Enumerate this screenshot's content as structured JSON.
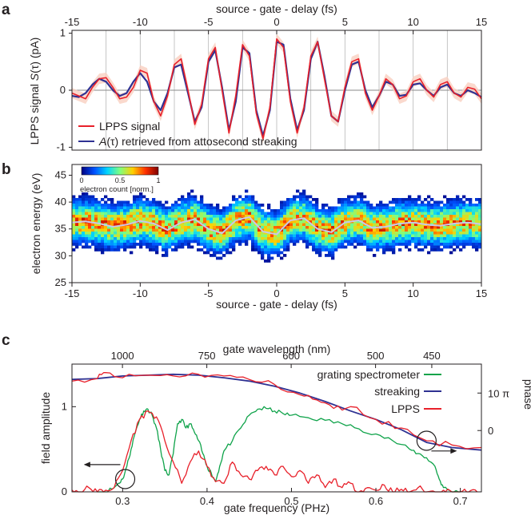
{
  "figure": {
    "panel_a": "a",
    "panel_b": "b",
    "panel_c": "c"
  },
  "chart_data": [
    {
      "panel": "a",
      "type": "line",
      "xlabel": "source - gate - delay (fs)",
      "ylabel_prefix": "LPPS signal ",
      "ylabel_italic": "S",
      "ylabel_suffix": "(τ) (pA)",
      "xlim": [
        -15,
        15
      ],
      "ylim": [
        -1.05,
        1.05
      ],
      "xticks": [
        -15,
        -10,
        -5,
        0,
        5,
        10,
        15
      ],
      "yticks": [
        -1,
        0,
        1
      ],
      "gridlines_x": [
        -12.5,
        -10,
        -7.5,
        -5,
        -2.5,
        0,
        2.5,
        5,
        7.5,
        10,
        12.5
      ],
      "zero_line": true,
      "legend_position": "bottom-left",
      "series": [
        {
          "name": "LPPS signal",
          "color": "#e8202a",
          "band_color": "#f9cfc0",
          "x": [
            -15,
            -14.5,
            -14,
            -13.5,
            -13,
            -12.5,
            -12,
            -11.5,
            -11,
            -10.5,
            -10,
            -9.5,
            -9,
            -8.5,
            -8,
            -7.5,
            -7,
            -6.5,
            -6,
            -5.5,
            -5,
            -4.5,
            -4,
            -3.5,
            -3,
            -2.5,
            -2,
            -1.5,
            -1,
            -0.5,
            0,
            0.5,
            1,
            1.5,
            2,
            2.5,
            3,
            3.5,
            4,
            4.5,
            5,
            5.5,
            6,
            6.5,
            7,
            7.5,
            8,
            8.5,
            9,
            9.5,
            10,
            10.5,
            11,
            11.5,
            12,
            12.5,
            13,
            13.5,
            14,
            14.5,
            15
          ],
          "y": [
            -0.05,
            -0.1,
            -0.15,
            0.05,
            0.2,
            0.22,
            0.05,
            -0.15,
            -0.12,
            0.05,
            0.35,
            0.3,
            -0.2,
            -0.45,
            -0.1,
            0.45,
            0.55,
            0.0,
            -0.6,
            -0.25,
            0.55,
            0.75,
            0.0,
            -0.75,
            -0.1,
            0.8,
            0.6,
            -0.4,
            -0.85,
            -0.3,
            0.9,
            0.75,
            -0.2,
            -0.75,
            -0.3,
            0.6,
            0.85,
            0.2,
            -0.45,
            -0.55,
            0.05,
            0.5,
            0.55,
            -0.05,
            -0.35,
            -0.1,
            0.2,
            0.1,
            -0.15,
            -0.1,
            0.15,
            0.2,
            0.0,
            -0.12,
            0.1,
            0.15,
            -0.05,
            -0.12,
            0.05,
            0.02,
            -0.15
          ]
        },
        {
          "name_prefix": "",
          "name_italic": "A",
          "name_suffix": "(τ) retrieved from attosecond streaking",
          "color": "#2e3192",
          "x": [
            -15,
            -14.5,
            -14,
            -13.5,
            -13,
            -12.5,
            -12,
            -11.5,
            -11,
            -10.5,
            -10,
            -9.5,
            -9,
            -8.5,
            -8,
            -7.5,
            -7,
            -6.5,
            -6,
            -5.5,
            -5,
            -4.5,
            -4,
            -3.5,
            -3,
            -2.5,
            -2,
            -1.5,
            -1,
            -0.5,
            0,
            0.5,
            1,
            1.5,
            2,
            2.5,
            3,
            3.5,
            4,
            4.5,
            5,
            5.5,
            6,
            6.5,
            7,
            7.5,
            8,
            8.5,
            9,
            9.5,
            10,
            10.5,
            11,
            11.5,
            12,
            12.5,
            13,
            13.5,
            14,
            14.5,
            15
          ],
          "y": [
            -0.1,
            -0.12,
            -0.05,
            0.1,
            0.2,
            0.15,
            0.0,
            -0.1,
            -0.05,
            0.15,
            0.3,
            0.15,
            -0.2,
            -0.35,
            -0.05,
            0.4,
            0.45,
            -0.05,
            -0.55,
            -0.3,
            0.5,
            0.7,
            0.05,
            -0.7,
            -0.2,
            0.75,
            0.65,
            -0.35,
            -0.8,
            -0.35,
            0.85,
            0.8,
            -0.15,
            -0.7,
            -0.35,
            0.55,
            0.85,
            0.25,
            -0.45,
            -0.55,
            0.0,
            0.45,
            0.5,
            0.0,
            -0.3,
            -0.1,
            0.15,
            0.1,
            -0.1,
            -0.08,
            0.1,
            0.12,
            0.0,
            -0.1,
            0.05,
            0.1,
            -0.05,
            -0.1,
            0.0,
            -0.05,
            -0.12
          ]
        }
      ]
    },
    {
      "panel": "b",
      "type": "heatmap",
      "xlabel": "source - gate - delay (fs)",
      "ylabel": "electron energy (eV)",
      "xlim": [
        -15,
        15
      ],
      "ylim": [
        25,
        47
      ],
      "xticks": [
        -15,
        -10,
        -5,
        0,
        5,
        10,
        15
      ],
      "yticks": [
        25,
        30,
        35,
        40,
        45
      ],
      "colorbar_label": "electron count [norm.]",
      "colorbar_ticks": [
        "0",
        "0.5",
        "1"
      ],
      "colorbar_position": "top-left",
      "colormap": [
        "#00007f",
        "#0050ff",
        "#00d4ff",
        "#7fff7f",
        "#ffd000",
        "#ff3000",
        "#7f0000"
      ],
      "center_energy_ev": 35.6,
      "band_halfwidth_ev": 4.2,
      "trace_color": "#c8c8e8",
      "trace_x": [
        -15,
        -14,
        -13,
        -12,
        -11,
        -10,
        -9,
        -8,
        -7,
        -6,
        -5,
        -4,
        -3,
        -2,
        -1,
        0,
        1,
        2,
        3,
        4,
        5,
        6,
        7,
        8,
        9,
        10,
        11,
        12,
        13,
        14,
        15
      ],
      "trace_y": [
        36.2,
        36.4,
        36.0,
        35.4,
        35.8,
        36.5,
        36.0,
        34.8,
        36.2,
        36.8,
        35.0,
        34.2,
        36.6,
        37.2,
        34.5,
        34.0,
        36.6,
        37.0,
        35.0,
        34.4,
        36.2,
        36.6,
        35.2,
        35.4,
        36.0,
        36.2,
        35.8,
        35.6,
        36.0,
        36.2,
        35.9
      ]
    },
    {
      "panel": "c",
      "type": "line",
      "xlabel": "gate frequency (PHz)",
      "x2label": "gate wavelength (nm)",
      "ylabel": "field amplitude",
      "y2label": "phase",
      "xlim": [
        0.24,
        0.725
      ],
      "ylim": [
        0,
        1.5
      ],
      "xticks": [
        0.3,
        0.4,
        0.5,
        0.6,
        0.7
      ],
      "yticks": [
        0,
        1
      ],
      "x2ticks_nm": [
        1000,
        750,
        600,
        500,
        450
      ],
      "y2ticks": [
        {
          "label": "10 π",
          "value": 1.16
        },
        {
          "label": "0",
          "value": 0.72
        }
      ],
      "legend_position": "top-right",
      "annotations": [
        "circle-arrow-left at 0.30 PHz",
        "circle-arrow-right at 0.66 PHz"
      ],
      "series": [
        {
          "name": "grating spectrometer",
          "color": "#0fa34a",
          "x": [
            0.27,
            0.28,
            0.29,
            0.295,
            0.3,
            0.305,
            0.31,
            0.315,
            0.32,
            0.325,
            0.33,
            0.335,
            0.34,
            0.345,
            0.35,
            0.355,
            0.36,
            0.365,
            0.37,
            0.375,
            0.38,
            0.385,
            0.39,
            0.395,
            0.4,
            0.405,
            0.41,
            0.415,
            0.42,
            0.43,
            0.44,
            0.45,
            0.46,
            0.47,
            0.48,
            0.49,
            0.5,
            0.52,
            0.54,
            0.56,
            0.58,
            0.6,
            0.62,
            0.64,
            0.65,
            0.66,
            0.67,
            0.675,
            0.68,
            0.69,
            0.7
          ],
          "y": [
            0.0,
            0.0,
            0.05,
            0.1,
            0.15,
            0.3,
            0.5,
            0.7,
            0.85,
            0.95,
            0.97,
            0.9,
            0.75,
            0.5,
            0.25,
            0.2,
            0.45,
            0.8,
            0.85,
            0.75,
            0.8,
            0.7,
            0.6,
            0.45,
            0.3,
            0.22,
            0.12,
            0.3,
            0.48,
            0.6,
            0.75,
            0.9,
            0.97,
            0.98,
            0.95,
            0.92,
            0.9,
            0.87,
            0.84,
            0.8,
            0.74,
            0.68,
            0.6,
            0.5,
            0.45,
            0.4,
            0.3,
            0.15,
            0.05,
            0.0,
            0.0
          ]
        },
        {
          "name": "streaking",
          "color": "#2e3192",
          "x": [
            0.24,
            0.27,
            0.3,
            0.33,
            0.36,
            0.39,
            0.42,
            0.45,
            0.48,
            0.51,
            0.54,
            0.57,
            0.6,
            0.63,
            0.66,
            0.69,
            0.725
          ],
          "y": [
            1.32,
            1.33,
            1.36,
            1.37,
            1.38,
            1.37,
            1.34,
            1.3,
            1.24,
            1.16,
            1.06,
            0.95,
            0.85,
            0.73,
            0.58,
            0.52,
            0.49
          ]
        },
        {
          "name": "LPPS",
          "color": "#e8202a",
          "x": [
            0.24,
            0.25,
            0.26,
            0.27,
            0.28,
            0.29,
            0.3,
            0.31,
            0.32,
            0.33,
            0.34,
            0.35,
            0.36,
            0.37,
            0.38,
            0.39,
            0.4,
            0.41,
            0.42,
            0.43,
            0.44,
            0.45,
            0.46,
            0.47,
            0.48,
            0.49,
            0.5,
            0.51,
            0.52,
            0.53,
            0.54,
            0.55,
            0.56,
            0.57,
            0.58,
            0.59,
            0.6,
            0.61,
            0.62,
            0.63,
            0.64,
            0.65,
            0.66,
            0.67,
            0.68,
            0.69,
            0.7,
            0.71,
            0.72
          ],
          "y": [
            0.02,
            0.0,
            0.05,
            0.0,
            0.02,
            0.05,
            0.25,
            0.6,
            0.85,
            0.95,
            0.88,
            0.6,
            0.35,
            0.1,
            0.35,
            0.48,
            0.3,
            0.12,
            0.1,
            0.35,
            0.2,
            0.15,
            0.25,
            0.3,
            0.2,
            0.3,
            0.18,
            0.25,
            0.1,
            0.2,
            0.05,
            0.15,
            0.05,
            0.1,
            0.0,
            0.05,
            0.02,
            0.08,
            0.0,
            0.03,
            0.0,
            0.05,
            0.0,
            0.0,
            0.02,
            0.0,
            0.0,
            0.0,
            0.0
          ]
        },
        {
          "name": "LPPS phase",
          "color": "#e8202a",
          "x": [
            0.24,
            0.27,
            0.28,
            0.3,
            0.33,
            0.36,
            0.39,
            0.42,
            0.45,
            0.48,
            0.51,
            0.53,
            0.55,
            0.57,
            0.6,
            0.63,
            0.66,
            0.69,
            0.725
          ],
          "y": [
            1.3,
            1.33,
            1.4,
            1.34,
            1.37,
            1.36,
            1.38,
            1.36,
            1.32,
            1.26,
            1.14,
            1.08,
            0.98,
            1.0,
            0.85,
            0.75,
            0.6,
            0.55,
            0.52
          ]
        }
      ]
    }
  ]
}
